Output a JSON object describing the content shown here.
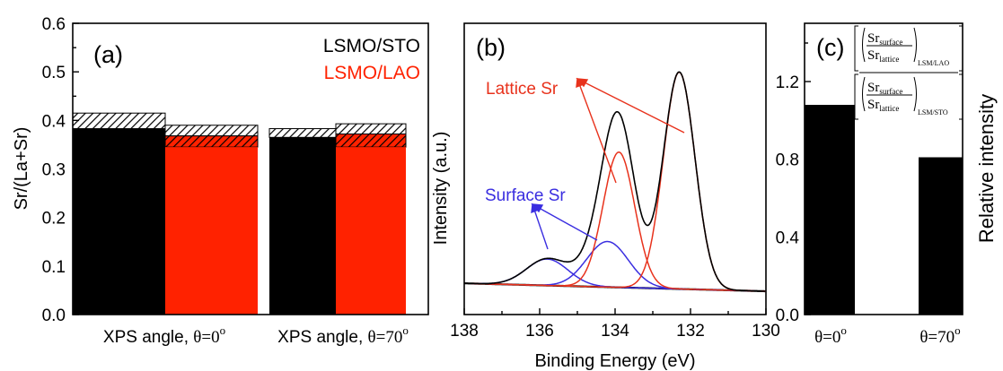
{
  "chart_data": [
    {
      "type": "bar",
      "panel_label": "(a)",
      "ylabel": "Sr/(La+Sr)",
      "ylim": [
        0.0,
        0.6
      ],
      "yticks": [
        "0.0",
        "0.1",
        "0.2",
        "0.3",
        "0.4",
        "0.5",
        "0.6"
      ],
      "categories": [
        "XPS angle, θ=0°",
        "XPS angle, θ=70°"
      ],
      "category_labels": [
        {
          "text": "XPS angle, ",
          "theta": "θ=0",
          "sup": "o"
        },
        {
          "text": "XPS angle, ",
          "theta": "θ=70",
          "sup": "o"
        }
      ],
      "series": [
        {
          "name": "LSMO/STO",
          "color": "#000000",
          "values": [
            0.383,
            0.365
          ],
          "hatched_top": [
            0.415,
            0.383
          ]
        },
        {
          "name": "LSMO/LAO",
          "color": "#ff2200",
          "values": [
            0.345,
            0.345
          ],
          "hatched_red": [
            0.368,
            0.372
          ],
          "hatched_top": [
            0.39,
            0.393
          ]
        }
      ],
      "legend": [
        "LSMO/STO",
        "LSMO/LAO"
      ],
      "legend_placement": "top-right",
      "grid": false
    },
    {
      "type": "line",
      "panel_label": "(b)",
      "xlabel": "Binding Energy (eV)",
      "ylabel": "Intensity (a.u.)",
      "xlim": [
        138,
        130
      ],
      "xticks": [
        "138",
        "136",
        "134",
        "132",
        "130"
      ],
      "annotations": [
        {
          "text": "Lattice Sr",
          "color": "#e8321c"
        },
        {
          "text": "Surface Sr",
          "color": "#3a2ee0"
        }
      ],
      "components": [
        {
          "role": "envelope",
          "color": "#000000"
        },
        {
          "role": "background",
          "color": "#000000"
        },
        {
          "role": "Lattice Sr",
          "color": "#e8321c",
          "peaks_eV": [
            133.9,
            132.3
          ]
        },
        {
          "role": "Surface Sr",
          "color": "#3a2ee0",
          "peaks_eV": [
            135.8,
            134.2
          ]
        }
      ],
      "grid": false
    },
    {
      "type": "bar",
      "panel_label": "(c)",
      "ylabel": "Relative intensity",
      "ylim": [
        0.0,
        1.5
      ],
      "yticks": [
        "0.0",
        "0.4",
        "0.8",
        "1.2"
      ],
      "categories": [
        "θ=0°",
        "θ=70°"
      ],
      "category_labels": [
        {
          "theta": "θ=0",
          "sup": "o"
        },
        {
          "theta": "θ=70",
          "sup": "o"
        }
      ],
      "values": [
        1.08,
        0.81
      ],
      "color": "#000000",
      "formula": {
        "num": "Sr",
        "num_sub": "surface",
        "den": "Sr",
        "den_sub": "lattice",
        "outer_sub_num": "LSM/LAO",
        "outer_sub_den": "LSM/STO"
      },
      "grid": false
    }
  ]
}
